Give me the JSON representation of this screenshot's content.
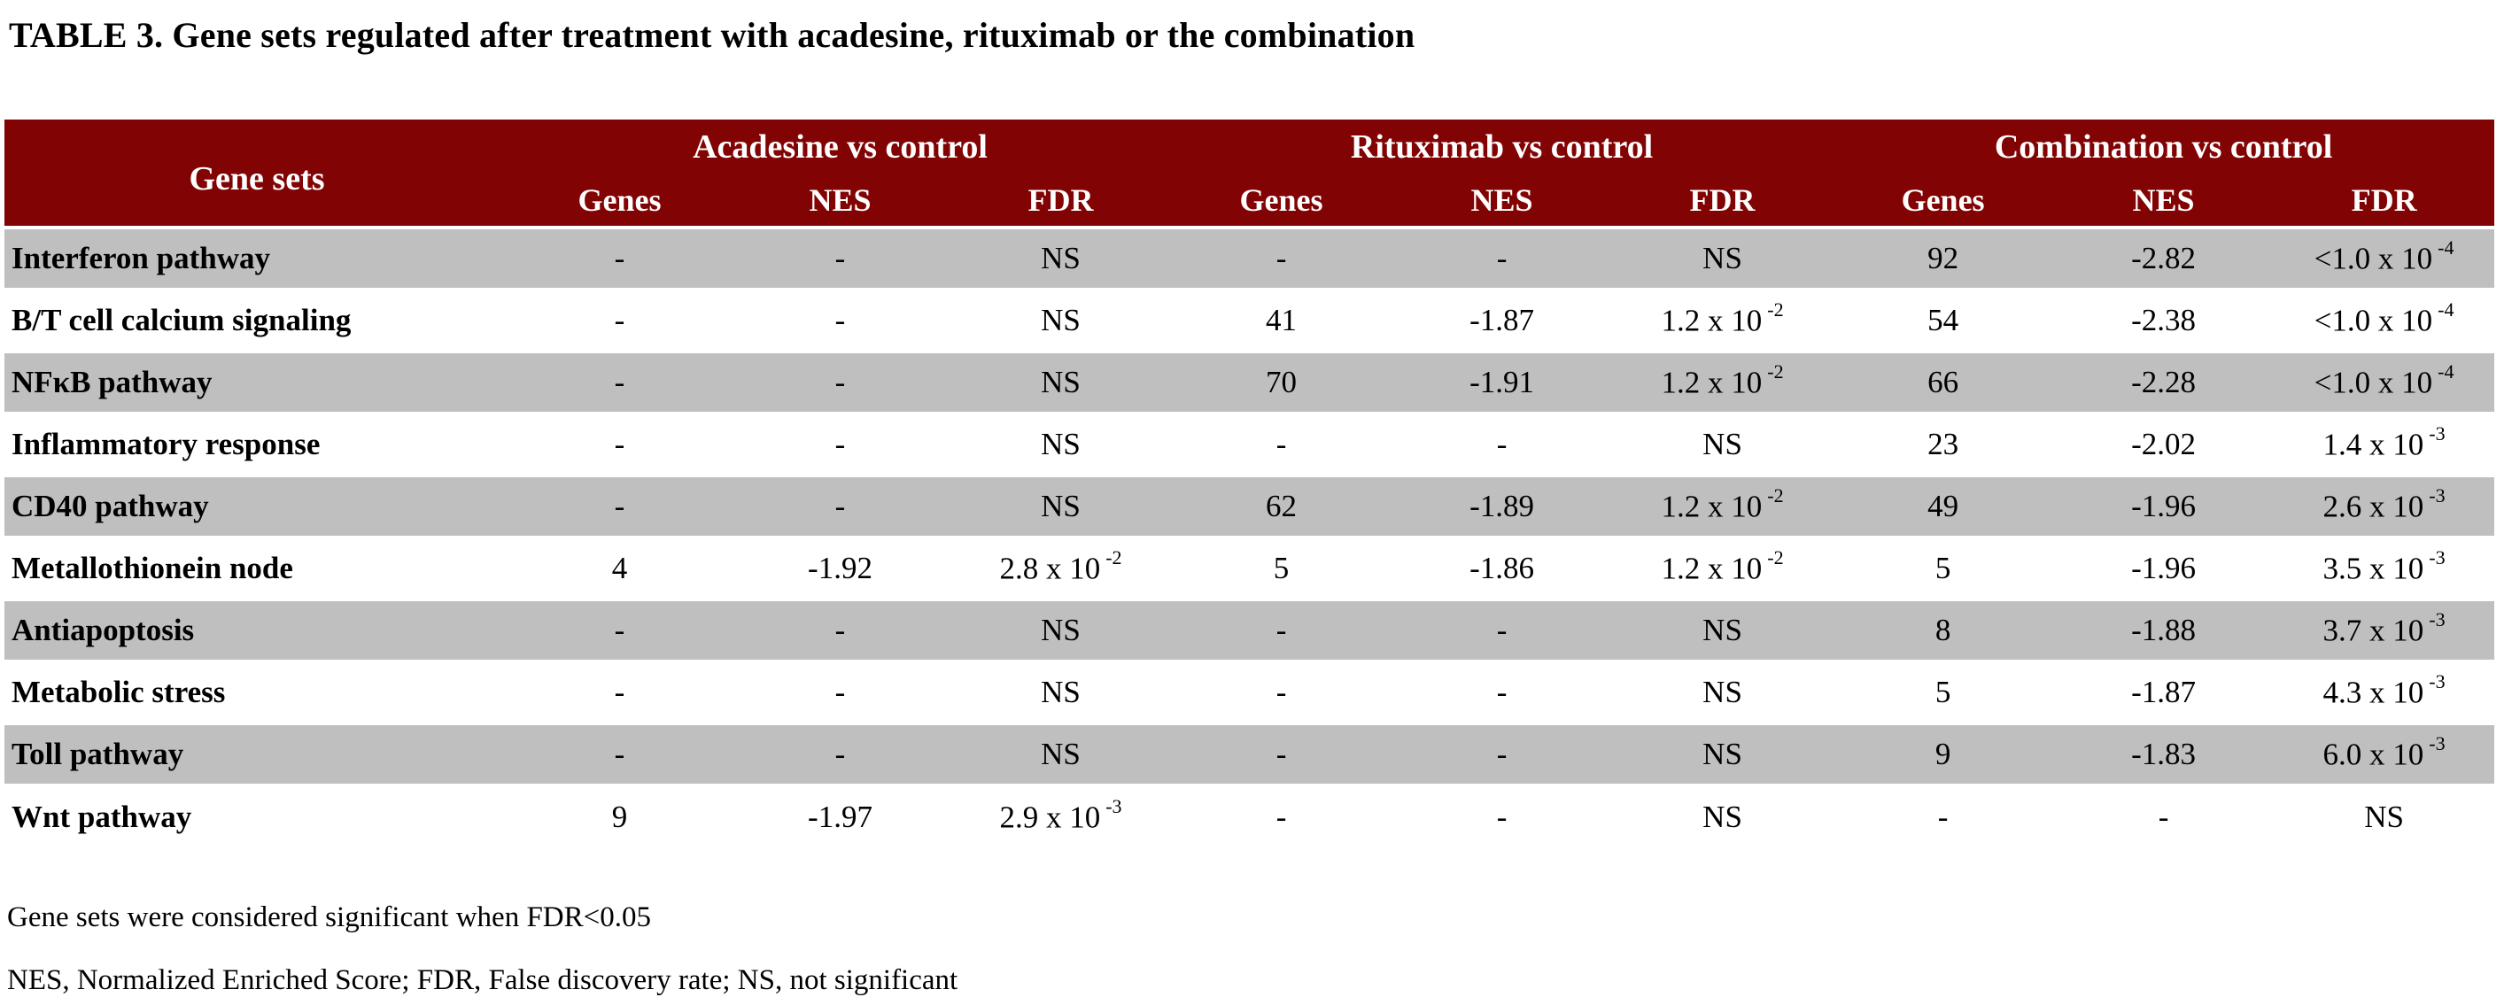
{
  "title": "TABLE 3. Gene sets regulated after treatment with acadesine, rituximab or the combination",
  "colors": {
    "header_bg": "#820303",
    "header_text": "#FFFFFF",
    "row_stripe_gray": "#BFBFBF",
    "row_stripe_white": "#FFFFFF",
    "body_text": "#000000"
  },
  "table": {
    "row_header_label": "Gene sets",
    "groups": [
      {
        "label": "Acadesine vs control",
        "subcols": [
          "Genes",
          "NES",
          "FDR"
        ]
      },
      {
        "label": "Rituximab vs control",
        "subcols": [
          "Genes",
          "NES",
          "FDR"
        ]
      },
      {
        "label": "Combination vs control",
        "subcols": [
          "Genes",
          "NES",
          "FDR"
        ]
      }
    ],
    "rows": [
      {
        "gene_set": "Interferon pathway",
        "acadesine": {
          "genes": "-",
          "nes": "-",
          "fdr": "NS"
        },
        "rituximab": {
          "genes": "-",
          "nes": "-",
          "fdr": "NS"
        },
        "combination": {
          "genes": "92",
          "nes": "-2.82",
          "fdr": "<1.0 x 10^-4"
        }
      },
      {
        "gene_set": "B/T cell calcium signaling",
        "acadesine": {
          "genes": "-",
          "nes": "-",
          "fdr": "NS"
        },
        "rituximab": {
          "genes": "41",
          "nes": "-1.87",
          "fdr": "1.2 x 10^-2"
        },
        "combination": {
          "genes": "54",
          "nes": "-2.38",
          "fdr": "<1.0 x 10^-4"
        }
      },
      {
        "gene_set": "NFκB pathway",
        "acadesine": {
          "genes": "-",
          "nes": "-",
          "fdr": "NS"
        },
        "rituximab": {
          "genes": "70",
          "nes": "-1.91",
          "fdr": "1.2 x 10^-2"
        },
        "combination": {
          "genes": "66",
          "nes": "-2.28",
          "fdr": "<1.0 x 10^-4"
        }
      },
      {
        "gene_set": "Inflammatory response",
        "acadesine": {
          "genes": "-",
          "nes": "-",
          "fdr": "NS"
        },
        "rituximab": {
          "genes": "-",
          "nes": "-",
          "fdr": "NS"
        },
        "combination": {
          "genes": "23",
          "nes": "-2.02",
          "fdr": "1.4 x 10^-3"
        }
      },
      {
        "gene_set": "CD40 pathway",
        "acadesine": {
          "genes": "-",
          "nes": "-",
          "fdr": "NS"
        },
        "rituximab": {
          "genes": "62",
          "nes": "-1.89",
          "fdr": "1.2 x 10^-2"
        },
        "combination": {
          "genes": "49",
          "nes": "-1.96",
          "fdr": "2.6 x 10^-3"
        }
      },
      {
        "gene_set": "Metallothionein node",
        "acadesine": {
          "genes": "4",
          "nes": "-1.92",
          "fdr": "2.8 x 10^-2"
        },
        "rituximab": {
          "genes": "5",
          "nes": "-1.86",
          "fdr": "1.2 x 10^-2"
        },
        "combination": {
          "genes": "5",
          "nes": "-1.96",
          "fdr": "3.5 x 10^-3"
        }
      },
      {
        "gene_set": "Antiapoptosis",
        "acadesine": {
          "genes": "-",
          "nes": "-",
          "fdr": "NS"
        },
        "rituximab": {
          "genes": "-",
          "nes": "-",
          "fdr": "NS"
        },
        "combination": {
          "genes": "8",
          "nes": "-1.88",
          "fdr": "3.7 x 10^-3"
        }
      },
      {
        "gene_set": "Metabolic stress",
        "acadesine": {
          "genes": "-",
          "nes": "-",
          "fdr": "NS"
        },
        "rituximab": {
          "genes": "-",
          "nes": "-",
          "fdr": "NS"
        },
        "combination": {
          "genes": "5",
          "nes": "-1.87",
          "fdr": "4.3 x 10^-3"
        }
      },
      {
        "gene_set": "Toll pathway",
        "acadesine": {
          "genes": "-",
          "nes": "-",
          "fdr": "NS"
        },
        "rituximab": {
          "genes": "-",
          "nes": "-",
          "fdr": "NS"
        },
        "combination": {
          "genes": "9",
          "nes": "-1.83",
          "fdr": "6.0 x 10^-3"
        }
      },
      {
        "gene_set": "Wnt pathway",
        "acadesine": {
          "genes": "9",
          "nes": "-1.97",
          "fdr": "2.9 x 10^-3"
        },
        "rituximab": {
          "genes": "-",
          "nes": "-",
          "fdr": "NS"
        },
        "combination": {
          "genes": "-",
          "nes": "-",
          "fdr": "NS"
        }
      }
    ]
  },
  "footnotes": [
    "Gene sets were considered significant when FDR<0.05",
    "NES, Normalized Enriched Score; FDR, False discovery rate; NS, not significant"
  ]
}
